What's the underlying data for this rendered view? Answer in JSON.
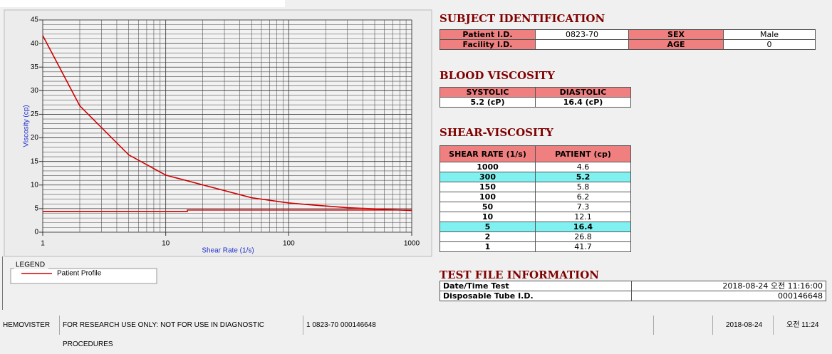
{
  "chart_data": {
    "type": "line",
    "x_label": "Shear Rate (1/s)",
    "y_label": "Viscosity (cp)",
    "xlim": [
      1,
      1000
    ],
    "xticks": [
      1,
      10,
      100,
      1000
    ],
    "xlog": true,
    "ylim": [
      0,
      45
    ],
    "yticks": [
      0,
      5,
      10,
      15,
      20,
      25,
      30,
      35,
      40,
      45
    ],
    "grid": true,
    "legend_title": "LEGEND",
    "series": [
      {
        "name": "Patient Profile",
        "color": "#d00000",
        "x": [
          1,
          2,
          5,
          10,
          50,
          100,
          150,
          300,
          1000
        ],
        "values": [
          41.7,
          26.8,
          16.4,
          12.1,
          7.3,
          6.2,
          5.8,
          5.2,
          4.6
        ]
      },
      {
        "color": "#d00000",
        "x": [
          1,
          15,
          15,
          1000
        ],
        "values": [
          4.4,
          4.4,
          4.7,
          4.7
        ]
      }
    ]
  },
  "subject_identification": {
    "title": "SUBJECT IDENTIFICATION",
    "patient_id_label": "Patient I.D.",
    "patient_id": "0823-70",
    "sex_label": "SEX",
    "sex": "Male",
    "facility_id_label": "Facility I.D.",
    "age_label": "AGE",
    "age": 0
  },
  "blood_viscosity": {
    "title": "BLOOD VISCOSITY",
    "headers": [
      "SYSTOLIC",
      "DIASTOLIC"
    ],
    "values": [
      "5.2 (cP)",
      "16.4 (cP)"
    ]
  },
  "shear_viscosity": {
    "title": "SHEAR-VISCOSITY",
    "headers": [
      "SHEAR RATE (1/s)",
      "PATIENT (cp)"
    ],
    "rows": [
      {
        "shear_rate": 1000,
        "patient": 4.6
      },
      {
        "shear_rate": 300,
        "patient": 5.2,
        "highlight": true
      },
      {
        "shear_rate": 150,
        "patient": 5.8
      },
      {
        "shear_rate": 100,
        "patient": 6.2
      },
      {
        "shear_rate": 50,
        "patient": 7.3
      },
      {
        "shear_rate": 10,
        "patient": 12.1
      },
      {
        "shear_rate": 5,
        "patient": 16.4,
        "highlight": true
      },
      {
        "shear_rate": 2,
        "patient": 26.8
      },
      {
        "shear_rate": 1,
        "patient": 41.7
      }
    ]
  },
  "test_file": {
    "title": "TEST FILE INFORMATION",
    "rows": [
      [
        "Date/Time Test",
        "2018-08-24  오전 11:16:00"
      ],
      [
        "Disposable Tube I.D.",
        "000146648"
      ]
    ]
  },
  "status_bar": [
    "HEMOVISTER",
    "FOR RESEARCH USE ONLY: NOT FOR USE IN DIAGNOSTIC PROCEDURES",
    "1  0823-70  000146648",
    "2018-08-24",
    "오전 11:24"
  ]
}
